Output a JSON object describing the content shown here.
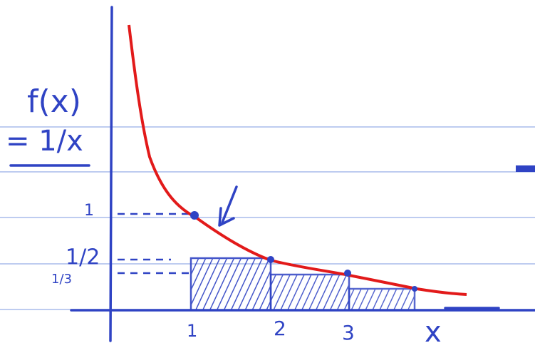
{
  "labels": {
    "function": "f(x)",
    "equation": "= 1/x",
    "y_one": "1",
    "y_half": "1/2",
    "y_third": "1/3",
    "x_ticks": [
      "1",
      "2",
      "3"
    ],
    "x_axis": "x"
  }
}
